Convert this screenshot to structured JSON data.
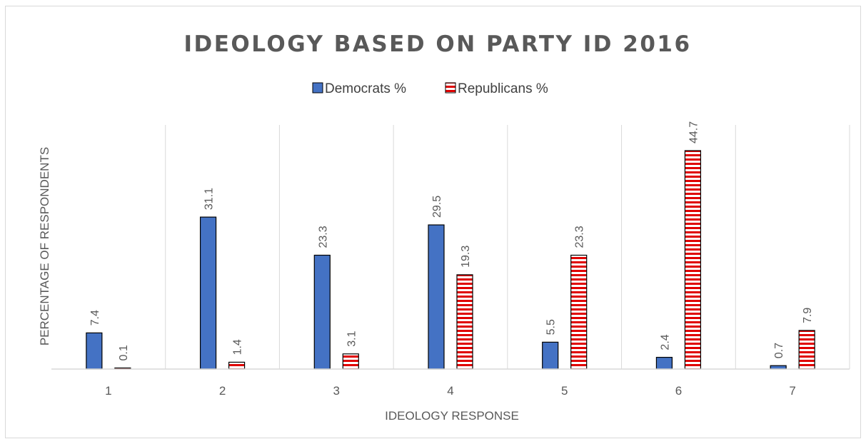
{
  "chart_data": {
    "type": "bar",
    "title": "IDEOLOGY BASED ON PARTY ID 2016",
    "xlabel": "IDEOLOGY RESPONSE",
    "ylabel": "PERCENTAGE OF RESPONDENTS",
    "categories": [
      "1",
      "2",
      "3",
      "4",
      "5",
      "6",
      "7"
    ],
    "ylim": [
      0,
      50
    ],
    "grid": "vertical category separators",
    "legend": "top-center",
    "series": [
      {
        "name": "Democrats %",
        "values": [
          7.4,
          31.1,
          23.3,
          29.5,
          5.5,
          2.4,
          0.7
        ],
        "color": "#4472c4",
        "pattern": "solid"
      },
      {
        "name": "Republicans %",
        "values": [
          0.1,
          1.4,
          3.1,
          19.3,
          23.3,
          44.7,
          7.9
        ],
        "color": "#e00000",
        "pattern": "horizontal-stripes"
      }
    ]
  }
}
